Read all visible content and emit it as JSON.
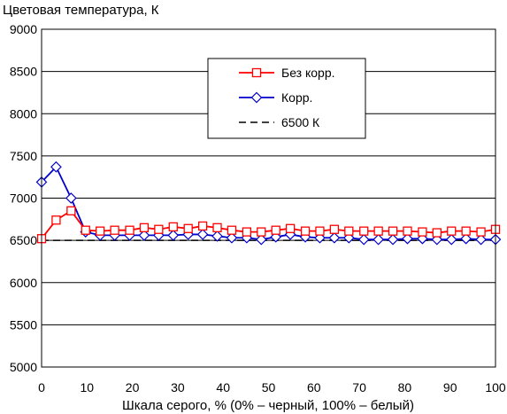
{
  "chart_data": {
    "type": "line",
    "title": "",
    "ylabel": "Цветовая температура, К",
    "xlabel": "Шкала серого, % (0% – черный, 100% – белый)",
    "xlim": [
      0,
      100
    ],
    "ylim": [
      5000,
      9000
    ],
    "x_ticks": [
      0,
      10,
      20,
      30,
      40,
      50,
      60,
      70,
      80,
      90,
      100
    ],
    "y_ticks": [
      5000,
      5500,
      6000,
      6500,
      7000,
      7500,
      8000,
      8500,
      9000
    ],
    "grid": "horizontal",
    "legend_position": "top-right",
    "series": [
      {
        "name": "Без корр.",
        "color": "#ff0000",
        "marker": "square",
        "x": [
          0,
          3.2,
          6.5,
          9.7,
          12.9,
          16.1,
          19.4,
          22.6,
          25.8,
          29,
          32.3,
          35.5,
          38.7,
          41.9,
          45.2,
          48.4,
          51.6,
          54.8,
          58.1,
          61.3,
          64.5,
          67.7,
          71,
          74.2,
          77.4,
          80.6,
          83.9,
          87.1,
          90.3,
          93.5,
          96.8,
          100
        ],
        "y": [
          6520,
          6740,
          6850,
          6620,
          6610,
          6620,
          6620,
          6650,
          6630,
          6660,
          6640,
          6670,
          6650,
          6620,
          6600,
          6600,
          6620,
          6640,
          6610,
          6610,
          6630,
          6610,
          6610,
          6610,
          6610,
          6610,
          6600,
          6590,
          6610,
          6610,
          6600,
          6630
        ]
      },
      {
        "name": "Корр.",
        "color": "#0000cc",
        "marker": "diamond",
        "x": [
          0,
          3.2,
          6.5,
          9.7,
          12.9,
          16.1,
          19.4,
          22.6,
          25.8,
          29,
          32.3,
          35.5,
          38.7,
          41.9,
          45.2,
          48.4,
          51.6,
          54.8,
          58.1,
          61.3,
          64.5,
          67.7,
          71,
          74.2,
          77.4,
          80.6,
          83.9,
          87.1,
          90.3,
          93.5,
          96.8,
          100
        ],
        "y": [
          7190,
          7370,
          7000,
          6600,
          6560,
          6560,
          6560,
          6560,
          6560,
          6560,
          6570,
          6570,
          6550,
          6530,
          6530,
          6510,
          6540,
          6570,
          6540,
          6530,
          6530,
          6530,
          6510,
          6510,
          6510,
          6520,
          6520,
          6510,
          6510,
          6520,
          6510,
          6510
        ]
      },
      {
        "name": "6500 К",
        "color": "#000000",
        "marker": "none",
        "dashed": true,
        "x": [
          0,
          100
        ],
        "y": [
          6500,
          6500
        ]
      }
    ]
  }
}
